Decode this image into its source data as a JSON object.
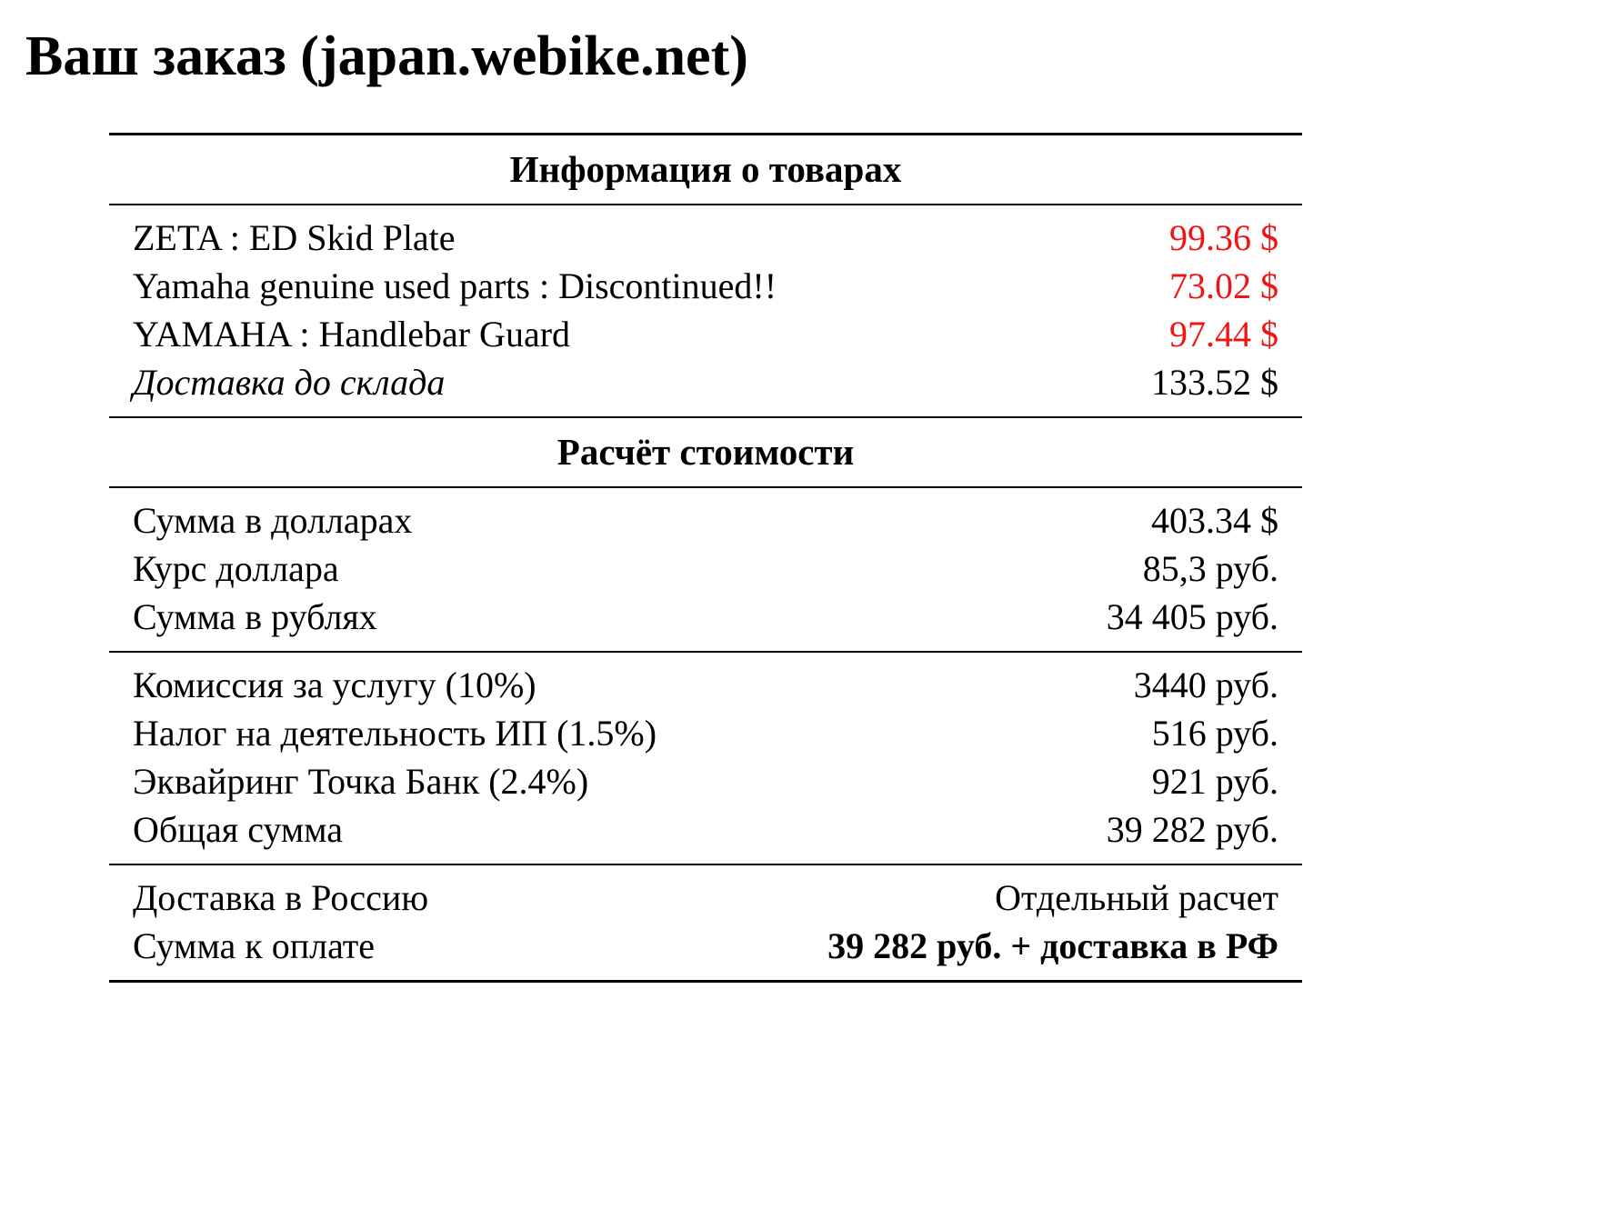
{
  "page": {
    "title": "Ваш заказ (japan.webike.net)"
  },
  "colors": {
    "price_red": "#f01414",
    "text": "#000000",
    "background": "#ffffff"
  },
  "table": {
    "items_header": "Информация о товарах",
    "items": [
      {
        "label": "ZETA : ED Skid Plate",
        "value": "99.36 $"
      },
      {
        "label": "Yamaha genuine used parts : Discontinued!!",
        "value": "73.02 $"
      },
      {
        "label": "YAMAHA : Handlebar Guard",
        "value": "97.44 $"
      },
      {
        "label": "Доставка до склада",
        "value": "133.52 $"
      }
    ],
    "calc_header": "Расчёт стоимости",
    "calc_group1": [
      {
        "label": "Сумма в долларах",
        "value": "403.34 $"
      },
      {
        "label": "Курс доллара",
        "value": "85,3 руб."
      },
      {
        "label": "Сумма в рублях",
        "value": "34 405 руб."
      }
    ],
    "calc_group2": [
      {
        "label": "Комиссия за услугу (10%)",
        "value": "3440 руб."
      },
      {
        "label": "Налог на деятельность ИП (1.5%)",
        "value": "516 руб."
      },
      {
        "label": "Эквайринг Точка Банк (2.4%)",
        "value": "921 руб."
      },
      {
        "label": "Общая сумма",
        "value": "39 282 руб."
      }
    ],
    "calc_group3": [
      {
        "label": "Доставка в Россию",
        "value": "Отдельный расчет"
      },
      {
        "label": "Сумма к оплате",
        "value": "39 282 руб. + доставка в РФ"
      }
    ]
  }
}
